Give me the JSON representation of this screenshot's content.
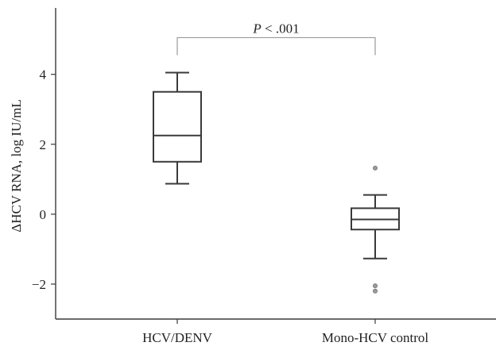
{
  "chart_data": {
    "type": "box",
    "ylabel": "ΔHCV RNA, log IU/mL",
    "ylim": [
      -3,
      5.9
    ],
    "yticks": [
      -2,
      0,
      2,
      4
    ],
    "ytick_labels": [
      "−2",
      "0",
      "2",
      "4"
    ],
    "categories": [
      "HCV/DENV",
      "Mono-HCV control"
    ],
    "boxes": [
      {
        "category": "HCV/DENV",
        "whisker_low": 0.87,
        "q1": 1.5,
        "median": 2.25,
        "q3": 3.5,
        "whisker_high": 4.05,
        "outliers": []
      },
      {
        "category": "Mono-HCV control",
        "whisker_low": -1.27,
        "q1": -0.44,
        "median": -0.15,
        "q3": 0.17,
        "whisker_high": 0.55,
        "outliers": [
          1.32,
          -2.05,
          -2.2
        ]
      }
    ],
    "annotation": {
      "label_italic": "P",
      "label_rest": " < .001",
      "between": [
        "HCV/DENV",
        "Mono-HCV control"
      ],
      "y": 5.05
    },
    "grid": false,
    "colors": {
      "box_edge": "#3a3a3a",
      "outlier": "#9a9a9a",
      "bracket": "#9a9a9a"
    }
  }
}
